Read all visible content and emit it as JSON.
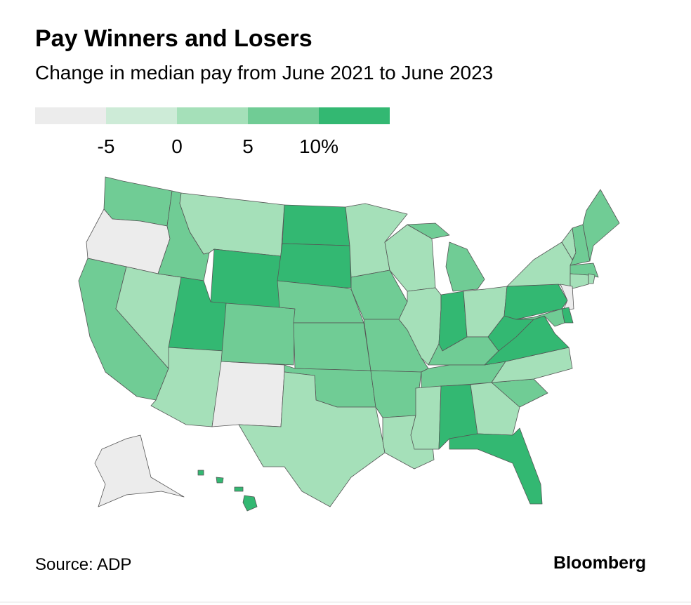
{
  "header": {
    "title": "Pay Winners and Losers",
    "subtitle": "Change in median pay from June 2021 to June 2023"
  },
  "legend": {
    "colors": [
      "#ececec",
      "#cdebd7",
      "#a5e0b9",
      "#70cc95",
      "#33b872"
    ],
    "ticks": [
      -5,
      0,
      5,
      {
        "value": 10,
        "label": "10%"
      }
    ]
  },
  "map": {
    "values": {
      "WA": 7.5,
      "OR": -7.5,
      "CA": 7.5,
      "NV": 2.5,
      "ID": 7.5,
      "MT": 2.5,
      "WY": 12.5,
      "UT": 12.5,
      "AZ": 2.5,
      "NM": -7.5,
      "CO": 7.5,
      "ND": 12.5,
      "SD": 12.5,
      "NE": 7.5,
      "KS": 7.5,
      "OK": 7.5,
      "TX": 2.5,
      "MN": 2.5,
      "IA": 7.5,
      "MO": 7.5,
      "AR": 7.5,
      "LA": 2.5,
      "WI": 2.5,
      "IL": 2.5,
      "MI": 7.5,
      "IN": 12.5,
      "OH": 2.5,
      "KY": 7.5,
      "TN": 7.5,
      "MS": 2.5,
      "AL": 12.5,
      "GA": 2.5,
      "FL": 12.5,
      "SC": 7.5,
      "NC": 2.5,
      "VA": 12.5,
      "WV": 12.5,
      "PA": 12.5,
      "NY": 2.5,
      "VT": 2.5,
      "NH": 7.5,
      "ME": 7.5,
      "MA": 7.5,
      "RI": 2.5,
      "CT": 2.5,
      "NJ": -7.5,
      "DE": 12.5,
      "MD": 7.5,
      "AK": -7.5,
      "HI": 12.5
    }
  },
  "footer": {
    "source": "Source: ADP",
    "brand": "Bloomberg"
  }
}
